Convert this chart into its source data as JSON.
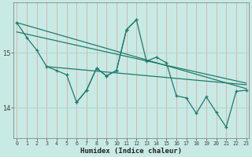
{
  "xlabel": "Humidex (Indice chaleur)",
  "bg_color": "#c8eae4",
  "plot_bg_color": "#c8eae4",
  "line_color": "#1e7b6e",
  "grid_color": "#a8d4ce",
  "axis_color": "#777777",
  "x_line1": [
    0,
    1,
    2,
    3,
    4,
    5,
    6,
    7,
    8,
    9,
    10,
    11,
    12
  ],
  "y_line1": [
    15.55,
    15.28,
    15.05,
    14.75,
    14.68,
    14.6,
    14.1,
    14.32,
    14.72,
    14.58,
    14.68,
    15.42,
    15.6
  ],
  "x_line2": [
    6,
    7,
    8,
    9,
    10,
    11,
    12,
    13,
    14,
    15,
    16,
    17,
    18,
    19,
    20,
    21,
    22,
    23
  ],
  "y_line2": [
    14.1,
    14.32,
    14.72,
    14.58,
    14.68,
    15.42,
    15.6,
    14.85,
    14.92,
    14.82,
    14.22,
    14.18,
    13.9,
    14.2,
    13.92,
    13.65,
    14.3,
    14.32
  ],
  "trend1_x": [
    0,
    23
  ],
  "trend1_y": [
    15.55,
    14.35
  ],
  "trend2_x": [
    0,
    23
  ],
  "trend2_y": [
    15.38,
    14.45
  ],
  "trend3_x": [
    3,
    23
  ],
  "trend3_y": [
    14.75,
    14.42
  ],
  "yticks": [
    14,
    15
  ],
  "ylim": [
    13.45,
    15.92
  ],
  "xlim": [
    -0.3,
    23.3
  ]
}
